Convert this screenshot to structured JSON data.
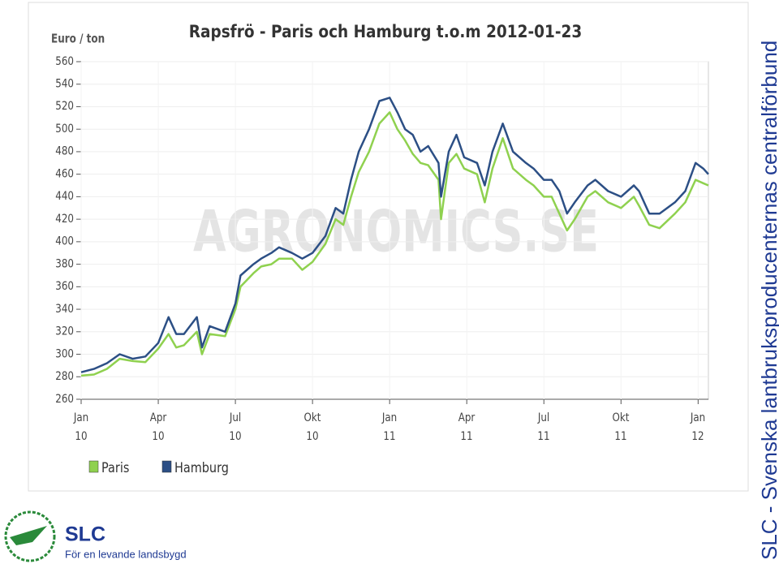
{
  "chart_data": {
    "type": "line",
    "title": "Rapsfrö - Paris och Hamburg t.o.m 2012-01-23",
    "y_label": "Euro / ton",
    "watermark": "AGRONOMICS.SE",
    "x": [
      0,
      0.5,
      1,
      1.5,
      2,
      2.5,
      3,
      3.4,
      3.7,
      4,
      4.5,
      4.7,
      5,
      5.6,
      6,
      6.2,
      6.7,
      7,
      7.4,
      7.7,
      8.2,
      8.6,
      9,
      9.5,
      9.9,
      10.2,
      10.5,
      10.8,
      11.2,
      11.6,
      12,
      12.3,
      12.6,
      12.9,
      13.2,
      13.5,
      13.9,
      14,
      14.3,
      14.6,
      14.9,
      15.4,
      15.7,
      16,
      16.4,
      16.8,
      17.3,
      17.6,
      18,
      18.3,
      18.6,
      18.9,
      19.2,
      19.7,
      20,
      20.5,
      21,
      21.5,
      21.7,
      22.1,
      22.5,
      23.1,
      23.5,
      23.9,
      24.2,
      24.4
    ],
    "series": [
      {
        "name": "Paris",
        "color": "#8fd14f",
        "values": [
          281,
          282,
          287,
          296,
          294,
          293,
          305,
          318,
          306,
          308,
          320,
          300,
          318,
          316,
          340,
          360,
          372,
          378,
          380,
          385,
          385,
          375,
          382,
          398,
          420,
          415,
          440,
          462,
          480,
          505,
          515,
          500,
          490,
          478,
          470,
          468,
          455,
          420,
          470,
          478,
          465,
          460,
          435,
          465,
          492,
          465,
          455,
          450,
          440,
          440,
          425,
          410,
          420,
          440,
          445,
          435,
          430,
          440,
          432,
          415,
          412,
          425,
          435,
          455,
          452,
          450
        ]
      },
      {
        "name": "Hamburg",
        "color": "#2c4f85",
        "values": [
          284,
          287,
          292,
          300,
          296,
          298,
          310,
          333,
          318,
          318,
          333,
          306,
          325,
          320,
          345,
          370,
          380,
          385,
          390,
          395,
          390,
          385,
          390,
          405,
          430,
          425,
          455,
          480,
          500,
          525,
          528,
          515,
          500,
          495,
          480,
          485,
          470,
          440,
          480,
          495,
          475,
          470,
          450,
          480,
          505,
          480,
          470,
          465,
          455,
          455,
          445,
          425,
          435,
          450,
          455,
          445,
          440,
          450,
          445,
          425,
          425,
          435,
          445,
          470,
          465,
          460
        ]
      }
    ],
    "xlim": [
      0,
      24.4
    ],
    "xticks": [
      {
        "value": 0,
        "label": "Jan\n10"
      },
      {
        "value": 3,
        "label": "Apr\n10"
      },
      {
        "value": 6,
        "label": "Jul\n10"
      },
      {
        "value": 9,
        "label": "Okt\n10"
      },
      {
        "value": 12,
        "label": "Jan\n11"
      },
      {
        "value": 15,
        "label": "Apr\n11"
      },
      {
        "value": 18,
        "label": "Jul\n11"
      },
      {
        "value": 21,
        "label": "Okt\n11"
      },
      {
        "value": 24,
        "label": "Jan\n12"
      }
    ],
    "ylim": [
      260,
      560
    ],
    "yticks": [
      260,
      280,
      300,
      320,
      340,
      360,
      380,
      400,
      420,
      440,
      460,
      480,
      500,
      520,
      540,
      560
    ],
    "grid": true
  },
  "page": {
    "side_text": "SLC - Svenska lantbruksproducenternas centralförbund",
    "logo_title": "SLC",
    "logo_subtitle": "För en levande landsbygd"
  }
}
